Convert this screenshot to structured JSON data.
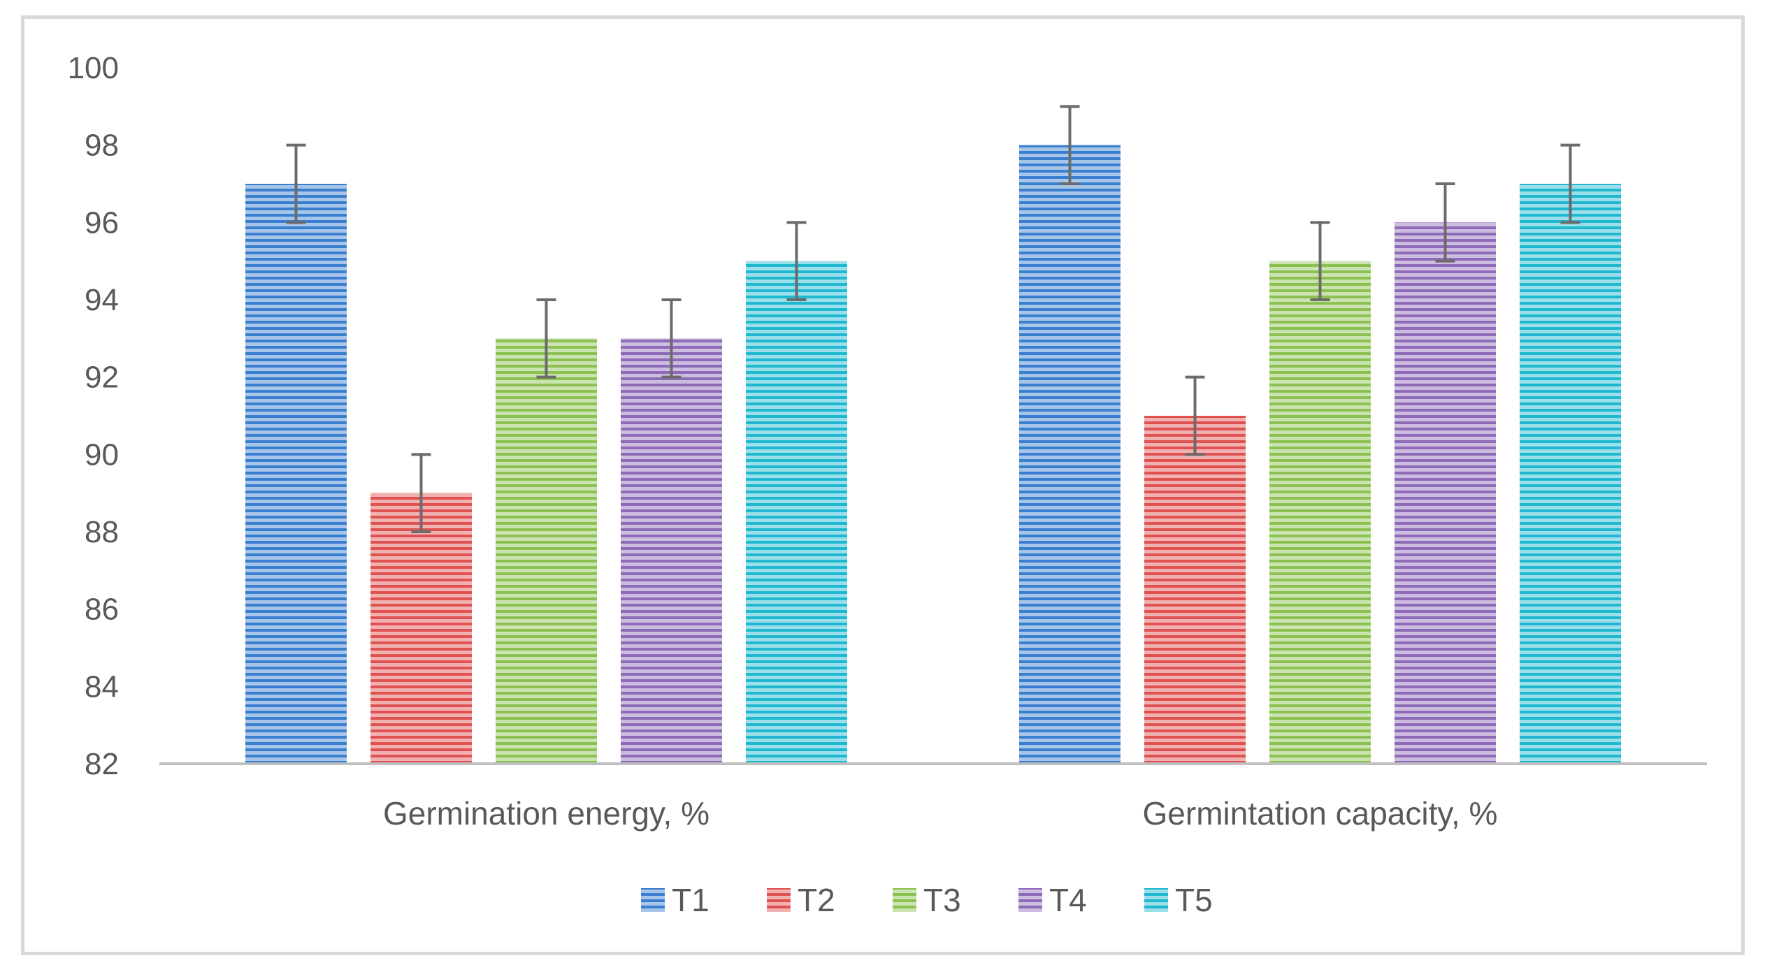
{
  "chart_data": {
    "type": "bar",
    "title": "",
    "xlabel": "",
    "ylabel": "",
    "categories": [
      "Germination energy, %",
      "Germintation capacity, %"
    ],
    "ylim": [
      82,
      100
    ],
    "yticks": [
      82,
      84,
      86,
      88,
      90,
      92,
      94,
      96,
      98,
      100
    ],
    "legend_position": "bottom",
    "series": [
      {
        "name": "T1",
        "color": "#3a7fcf",
        "values": [
          97,
          98
        ],
        "error_low": [
          96,
          97
        ],
        "error_high": [
          98,
          99
        ]
      },
      {
        "name": "T2",
        "color": "#e05252",
        "values": [
          89,
          91
        ],
        "error_low": [
          88,
          90
        ],
        "error_high": [
          90,
          92
        ]
      },
      {
        "name": "T3",
        "color": "#8cc152",
        "values": [
          93,
          95
        ],
        "error_low": [
          92,
          94
        ],
        "error_high": [
          94,
          96
        ]
      },
      {
        "name": "T4",
        "color": "#8e6bb8",
        "values": [
          93,
          96
        ],
        "error_low": [
          92,
          95
        ],
        "error_high": [
          94,
          97
        ]
      },
      {
        "name": "T5",
        "color": "#1fb8d0",
        "values": [
          95,
          97
        ],
        "error_low": [
          94,
          96
        ],
        "error_high": [
          96,
          98
        ]
      }
    ]
  }
}
